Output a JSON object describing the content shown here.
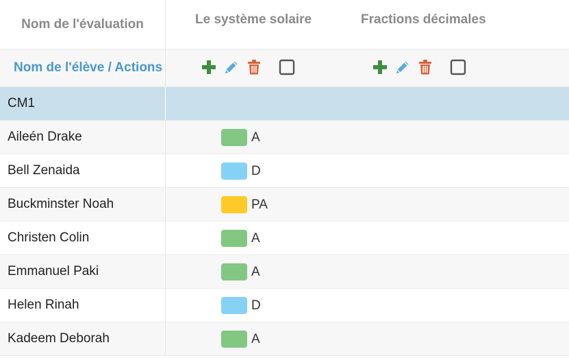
{
  "header": {
    "column_title": "Nom de l'évaluation",
    "evaluations": [
      {
        "title": "Le système solaire"
      },
      {
        "title": "Fractions décimales"
      }
    ]
  },
  "actions_row": {
    "label": "Nom de l'élève / Actions"
  },
  "icons": {
    "add": "plus-icon",
    "edit": "pencil-icon",
    "delete": "trash-icon",
    "select": "checkbox-icon"
  },
  "colors": {
    "add": "#3e8e41",
    "edit": "#5aa9dc",
    "delete": "#d9623b",
    "checkbox": "#555555",
    "A": "#82c882",
    "D": "#86d2f6",
    "PA": "#ffc928"
  },
  "group": {
    "label": "CM1"
  },
  "students": [
    {
      "name": "Aileén Drake",
      "grade": "A",
      "color": "#82c882"
    },
    {
      "name": "Bell Zenaida",
      "grade": "D",
      "color": "#86d2f6"
    },
    {
      "name": "Buckminster Noah",
      "grade": "PA",
      "color": "#ffc928"
    },
    {
      "name": "Christen Colin",
      "grade": "A",
      "color": "#82c882"
    },
    {
      "name": "Emmanuel Paki",
      "grade": "A",
      "color": "#82c882"
    },
    {
      "name": "Helen Rinah",
      "grade": "D",
      "color": "#86d2f6"
    },
    {
      "name": "Kadeem Deborah",
      "grade": "A",
      "color": "#82c882"
    }
  ]
}
